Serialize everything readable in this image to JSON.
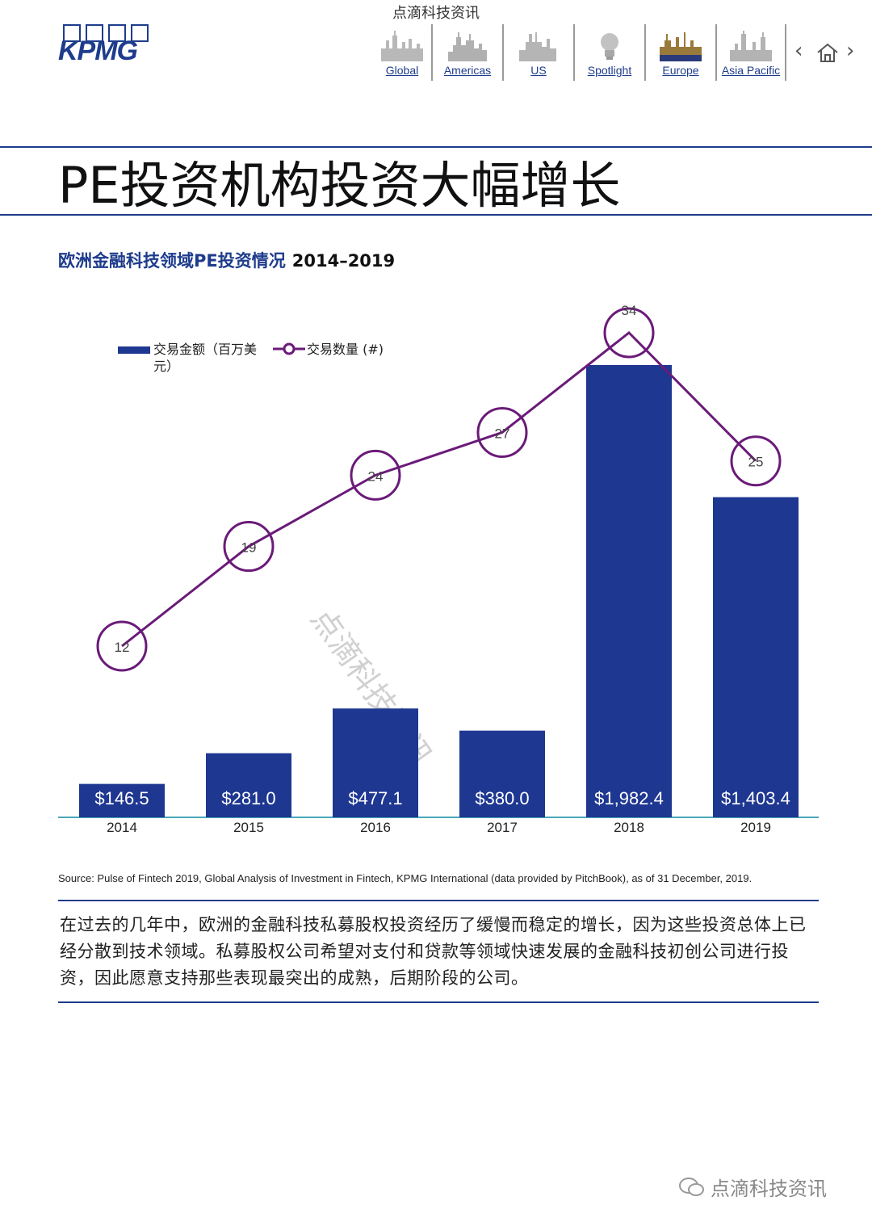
{
  "watermark": {
    "top": "点滴科技资讯",
    "diagonal": "点滴科技资讯",
    "bottom": "点滴科技资讯"
  },
  "logo": {
    "text": "KPMG"
  },
  "nav": {
    "items": [
      {
        "label": "Global"
      },
      {
        "label": "Americas"
      },
      {
        "label": "US"
      },
      {
        "label": "Spotlight"
      },
      {
        "label": "Europe"
      },
      {
        "label": "Asia Pacific"
      }
    ],
    "prev": "‹",
    "next": "›"
  },
  "page": {
    "title": "PE投资机构投资大幅增长"
  },
  "chart_header": {
    "title": "欧洲金融科技领域PE投资情况",
    "years": "2014–2019"
  },
  "legend": {
    "bar": "交易金额（百万美元）",
    "line": "交易数量 (#)"
  },
  "chart_data": {
    "type": "bar",
    "categories": [
      "2014",
      "2015",
      "2016",
      "2017",
      "2018",
      "2019"
    ],
    "series": [
      {
        "name": "交易金额（百万美元）",
        "type": "bar",
        "values": [
          146.5,
          281.0,
          477.1,
          380.0,
          1982.4,
          1403.4
        ],
        "labels": [
          "$146.5",
          "$281.0",
          "$477.1",
          "$380.0",
          "$1,982.4",
          "$1,403.4"
        ],
        "color": "#1e3791"
      },
      {
        "name": "交易数量 (#)",
        "type": "line",
        "values": [
          12,
          19,
          24,
          27,
          34,
          25
        ],
        "color": "#6a1b78"
      }
    ],
    "title": "欧洲金融科技领域PE投资情况 2014–2019",
    "xlabel": "",
    "ylabel": "",
    "grid": false,
    "legend_position": "top-left"
  },
  "source": "Source: Pulse of Fintech 2019, Global Analysis of Investment in Fintech, KPMG International (data provided by PitchBook), as of 31 December, 2019.",
  "body": "在过去的几年中，欧洲的金融科技私募股权投资经历了缓慢而稳定的增长，因为这些投资总体上已经分散到技术领域。私募股权公司希望对支付和贷款等领域快速发展的金融科技初创公司进行投资，因此愿意支持那些表现最突出的成熟，后期阶段的公司。"
}
